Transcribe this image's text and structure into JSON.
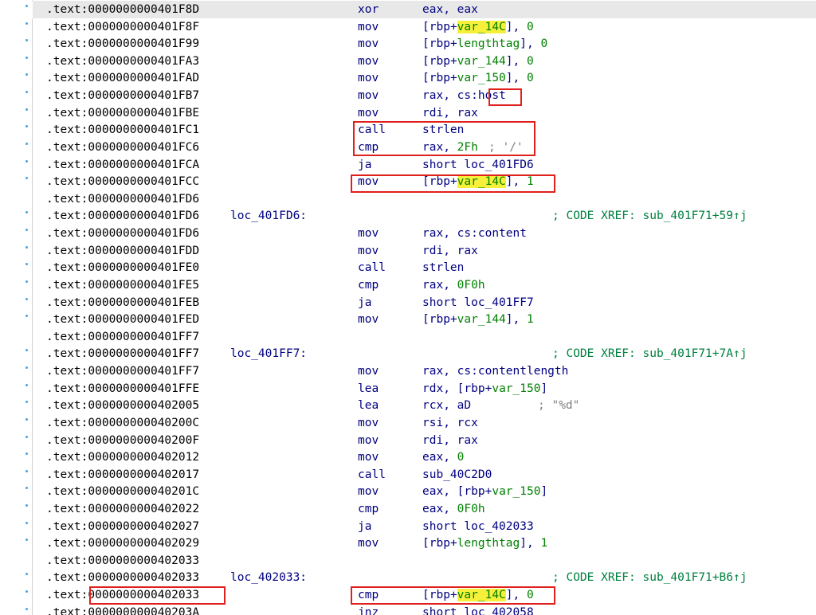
{
  "highlight": "var_14C",
  "lines": [
    {
      "segment": ".text:",
      "offset": "0000000000401F8D",
      "mnemonic": "xor",
      "operands": "eax, eax"
    },
    {
      "segment": ".text:",
      "offset": "0000000000401F8F",
      "mnemonic": "mov",
      "operands": "[rbp+var_14C], 0"
    },
    {
      "segment": ".text:",
      "offset": "0000000000401F99",
      "mnemonic": "mov",
      "operands": "[rbp+lengthtag], 0"
    },
    {
      "segment": ".text:",
      "offset": "0000000000401FA3",
      "mnemonic": "mov",
      "operands": "[rbp+var_144], 0"
    },
    {
      "segment": ".text:",
      "offset": "0000000000401FAD",
      "mnemonic": "mov",
      "operands": "[rbp+var_150], 0"
    },
    {
      "segment": ".text:",
      "offset": "0000000000401FB7",
      "mnemonic": "mov",
      "operands": "rax, cs:host"
    },
    {
      "segment": ".text:",
      "offset": "0000000000401FBE",
      "mnemonic": "mov",
      "operands": "rdi, rax"
    },
    {
      "segment": ".text:",
      "offset": "0000000000401FC1",
      "mnemonic": "call",
      "operands": "strlen"
    },
    {
      "segment": ".text:",
      "offset": "0000000000401FC6",
      "mnemonic": "cmp",
      "operands": "rax, 2Fh",
      "comment": "; '/'"
    },
    {
      "segment": ".text:",
      "offset": "0000000000401FCA",
      "mnemonic": "ja",
      "operands": "short loc_401FD6"
    },
    {
      "segment": ".text:",
      "offset": "0000000000401FCC",
      "mnemonic": "mov",
      "operands": "[rbp+var_14C], 1"
    },
    {
      "segment": ".text:",
      "offset": "0000000000401FD6"
    },
    {
      "segment": ".text:",
      "offset": "0000000000401FD6",
      "label": "loc_401FD6:",
      "comment": "; CODE XREF: sub_401F71+59↑j"
    },
    {
      "segment": ".text:",
      "offset": "0000000000401FD6",
      "mnemonic": "mov",
      "operands": "rax, cs:content"
    },
    {
      "segment": ".text:",
      "offset": "0000000000401FDD",
      "mnemonic": "mov",
      "operands": "rdi, rax"
    },
    {
      "segment": ".text:",
      "offset": "0000000000401FE0",
      "mnemonic": "call",
      "operands": "strlen"
    },
    {
      "segment": ".text:",
      "offset": "0000000000401FE5",
      "mnemonic": "cmp",
      "operands": "rax, 0F0h"
    },
    {
      "segment": ".text:",
      "offset": "0000000000401FEB",
      "mnemonic": "ja",
      "operands": "short loc_401FF7"
    },
    {
      "segment": ".text:",
      "offset": "0000000000401FED",
      "mnemonic": "mov",
      "operands": "[rbp+var_144], 1"
    },
    {
      "segment": ".text:",
      "offset": "0000000000401FF7"
    },
    {
      "segment": ".text:",
      "offset": "0000000000401FF7",
      "label": "loc_401FF7:",
      "comment": "; CODE XREF: sub_401F71+7A↑j"
    },
    {
      "segment": ".text:",
      "offset": "0000000000401FF7",
      "mnemonic": "mov",
      "operands": "rax, cs:contentlength"
    },
    {
      "segment": ".text:",
      "offset": "0000000000401FFE",
      "mnemonic": "lea",
      "operands": "rdx, [rbp+var_150]"
    },
    {
      "segment": ".text:",
      "offset": "0000000000402005",
      "mnemonic": "lea",
      "operands": "rcx, aD",
      "comment": "; \"%d\""
    },
    {
      "segment": ".text:",
      "offset": "000000000040200C",
      "mnemonic": "mov",
      "operands": "rsi, rcx"
    },
    {
      "segment": ".text:",
      "offset": "000000000040200F",
      "mnemonic": "mov",
      "operands": "rdi, rax"
    },
    {
      "segment": ".text:",
      "offset": "0000000000402012",
      "mnemonic": "mov",
      "operands": "eax, 0"
    },
    {
      "segment": ".text:",
      "offset": "0000000000402017",
      "mnemonic": "call",
      "operands": "sub_40C2D0"
    },
    {
      "segment": ".text:",
      "offset": "000000000040201C",
      "mnemonic": "mov",
      "operands": "eax, [rbp+var_150]"
    },
    {
      "segment": ".text:",
      "offset": "0000000000402022",
      "mnemonic": "cmp",
      "operands": "eax, 0F0h"
    },
    {
      "segment": ".text:",
      "offset": "0000000000402027",
      "mnemonic": "ja",
      "operands": "short loc_402033"
    },
    {
      "segment": ".text:",
      "offset": "0000000000402029",
      "mnemonic": "mov",
      "operands": "[rbp+lengthtag], 1"
    },
    {
      "segment": ".text:",
      "offset": "0000000000402033"
    },
    {
      "segment": ".text:",
      "offset": "0000000000402033",
      "label": "loc_402033:",
      "comment": "; CODE XREF: sub_401F71+B6↑j"
    },
    {
      "segment": ".text:",
      "offset": "0000000000402033",
      "mnemonic": "cmp",
      "operands": "[rbp+var_14C], 0"
    },
    {
      "segment": ".text:",
      "offset": "000000000040203A",
      "mnemonic": "jnz",
      "operands": "short loc_402058"
    }
  ]
}
